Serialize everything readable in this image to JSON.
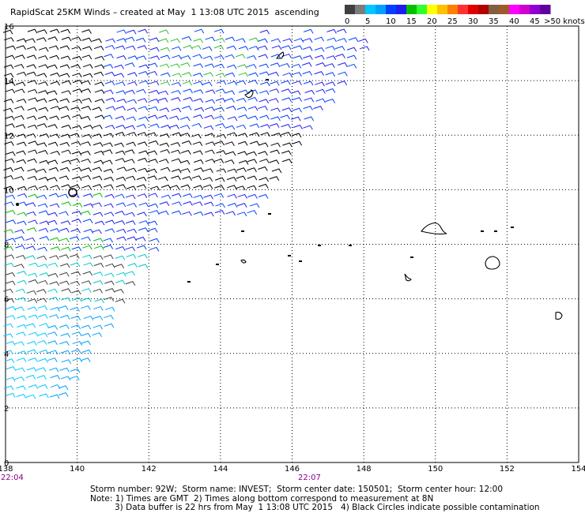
{
  "title": "RapidScat 25KM Winds – created at May  1 13:08 UTC 2015  ascending",
  "legend": {
    "colors": [
      "#404040",
      "#7c7c7c",
      "#00c8ff",
      "#00a0ff",
      "#0040ff",
      "#1e1ef0",
      "#00c000",
      "#30ff30",
      "#ffff00",
      "#ffc000",
      "#ff8000",
      "#ff3030",
      "#e00000",
      "#b00000",
      "#806040",
      "#a05a2a",
      "#ff00ff",
      "#d000d0",
      "#9000d0",
      "#6000a0"
    ],
    "tick_labels": [
      "0",
      "5",
      "10",
      "15",
      "20",
      "25",
      "30",
      "35",
      "40",
      "45",
      ">50 knots"
    ]
  },
  "axes": {
    "x_ticks": [
      "138",
      "140",
      "142",
      "144",
      "146",
      "148",
      "150",
      "152",
      "154"
    ],
    "y_ticks": [
      "16",
      "14",
      "12",
      "10",
      "8",
      "6",
      "4",
      "2",
      "0"
    ],
    "x_range": [
      138,
      154
    ],
    "y_range": [
      0,
      16
    ],
    "grid": "dotted"
  },
  "times": {
    "left": "22:04",
    "mid": "22:07"
  },
  "footer": {
    "line1": "Storm number: 92W;  Storm name: INVEST;  Storm center date: 150501;  Storm center hour: 12:00",
    "line2": "Note: 1) Times are GMT  2) Times along bottom correspond to measurement at 8N",
    "line3": "3) Data buffer is 22 hrs from May  1 13:08 UTC 2015   4) Black Circles indicate possible contamination"
  }
}
